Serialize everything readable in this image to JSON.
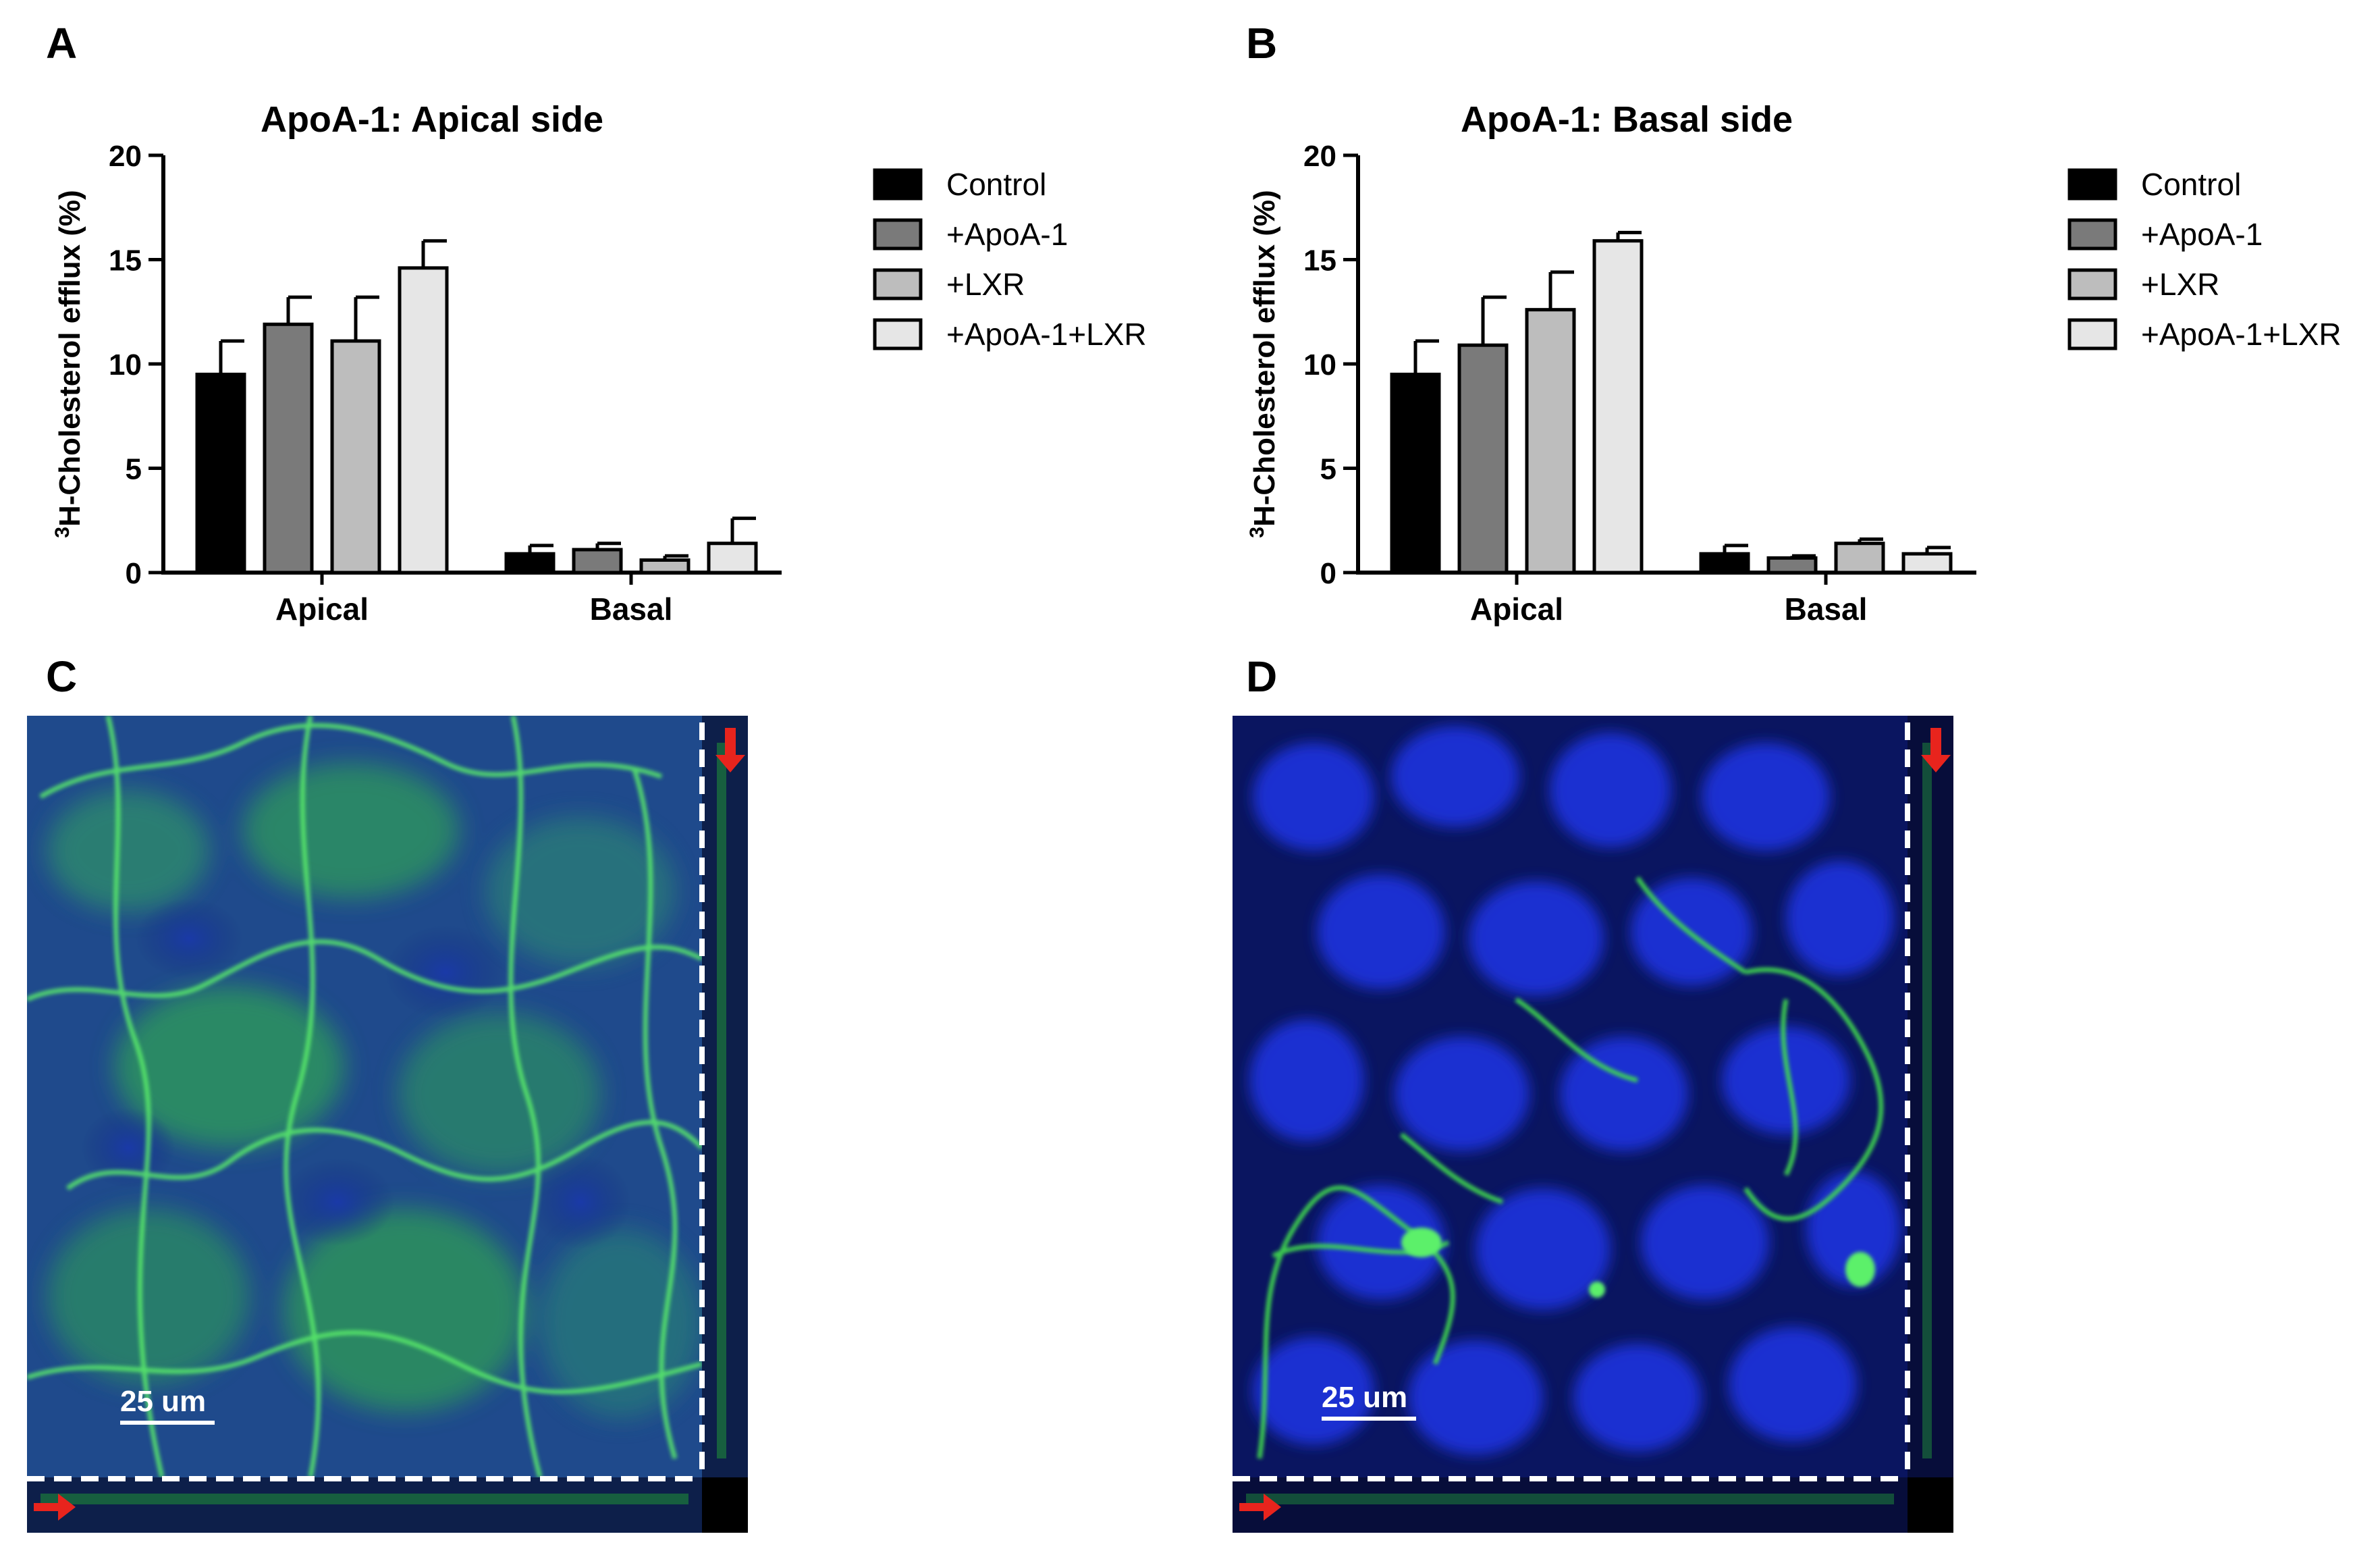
{
  "panels": {
    "A": "A",
    "B": "B",
    "C": "C",
    "D": "D"
  },
  "chart_data": [
    {
      "type": "bar",
      "title": "ApoA-1: Apical side",
      "ylabel_superscript": "3",
      "ylabel": "H-Cholesterol efflux (%)",
      "xlabel": "",
      "ylim": [
        0,
        20
      ],
      "yticks": [
        "0",
        "5",
        "10",
        "15",
        "20"
      ],
      "categories": [
        "Apical",
        "Basal"
      ],
      "series": [
        {
          "name": "Control",
          "color": "#000000",
          "values": [
            9.5,
            0.9
          ],
          "errors": [
            1.6,
            0.4
          ]
        },
        {
          "name": "+ApoA-1",
          "color": "#7a7a7a",
          "values": [
            11.9,
            1.1
          ],
          "errors": [
            1.3,
            0.3
          ]
        },
        {
          "name": "+LXR",
          "color": "#bdbdbd",
          "values": [
            11.1,
            0.6
          ],
          "errors": [
            2.1,
            0.2
          ]
        },
        {
          "name": "+ApoA-1+LXR",
          "color": "#e6e6e6",
          "values": [
            14.6,
            1.4
          ],
          "errors": [
            1.3,
            1.2
          ]
        }
      ],
      "legend_position": "right"
    },
    {
      "type": "bar",
      "title": "ApoA-1: Basal side",
      "ylabel_superscript": "3",
      "ylabel": "H-Cholesterol efflux (%)",
      "xlabel": "",
      "ylim": [
        0,
        20
      ],
      "yticks": [
        "0",
        "5",
        "10",
        "15",
        "20"
      ],
      "categories": [
        "Apical",
        "Basal"
      ],
      "series": [
        {
          "name": "Control",
          "color": "#000000",
          "values": [
            9.5,
            0.9
          ],
          "errors": [
            1.6,
            0.4
          ]
        },
        {
          "name": "+ApoA-1",
          "color": "#7a7a7a",
          "values": [
            10.9,
            0.7
          ],
          "errors": [
            2.3,
            0.1
          ]
        },
        {
          "name": "+LXR",
          "color": "#bdbdbd",
          "values": [
            12.6,
            1.4
          ],
          "errors": [
            1.8,
            0.2
          ]
        },
        {
          "name": "+ApoA-1+LXR",
          "color": "#e6e6e6",
          "values": [
            15.9,
            0.9
          ],
          "errors": [
            0.4,
            0.3
          ]
        }
      ],
      "legend_position": "right"
    }
  ],
  "micrographs": {
    "C": {
      "scale_label": "25 um"
    },
    "D": {
      "scale_label": "25 um"
    }
  },
  "colors": {
    "nuclei": "#1c33c8",
    "membrane": "#3fd44a",
    "arrow": "#e8241d",
    "dash": "#ffffff"
  }
}
